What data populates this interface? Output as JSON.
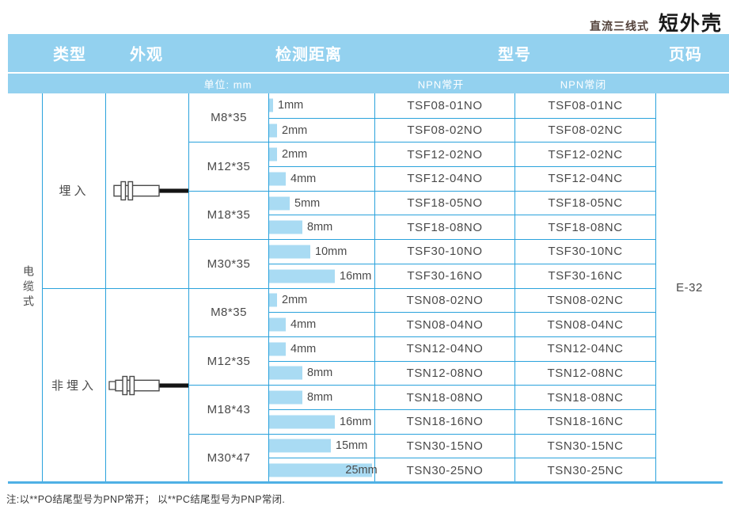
{
  "header": {
    "series_label": "直流三线式",
    "title": "短外壳"
  },
  "table": {
    "column_headers": {
      "type": "类型",
      "appearance": "外观",
      "distance": "检测距离",
      "model": "型号",
      "page": "页码"
    },
    "subheaders": {
      "unit": "单位: mm",
      "npn_open": "NPN常开",
      "npn_closed": "NPN常闭"
    },
    "cable_label": "电缆式",
    "page_code": "E-32",
    "sections": [
      {
        "type_label": "埋入",
        "appearance_icon": "flush-sensor-cable-icon",
        "groups": [
          {
            "size": "M8*35",
            "rows": [
              {
                "distance_mm": 1,
                "distance_label": "1mm",
                "npn_no": "TSF08-01NO",
                "npn_nc": "TSF08-01NC"
              },
              {
                "distance_mm": 2,
                "distance_label": "2mm",
                "npn_no": "TSF08-02NO",
                "npn_nc": "TSF08-02NC"
              }
            ]
          },
          {
            "size": "M12*35",
            "rows": [
              {
                "distance_mm": 2,
                "distance_label": "2mm",
                "npn_no": "TSF12-02NO",
                "npn_nc": "TSF12-02NC"
              },
              {
                "distance_mm": 4,
                "distance_label": "4mm",
                "npn_no": "TSF12-04NO",
                "npn_nc": "TSF12-04NC"
              }
            ]
          },
          {
            "size": "M18*35",
            "rows": [
              {
                "distance_mm": 5,
                "distance_label": "5mm",
                "npn_no": "TSF18-05NO",
                "npn_nc": "TSF18-05NC"
              },
              {
                "distance_mm": 8,
                "distance_label": "8mm",
                "npn_no": "TSF18-08NO",
                "npn_nc": "TSF18-08NC"
              }
            ]
          },
          {
            "size": "M30*35",
            "rows": [
              {
                "distance_mm": 10,
                "distance_label": "10mm",
                "npn_no": "TSF30-10NO",
                "npn_nc": "TSF30-10NC"
              },
              {
                "distance_mm": 16,
                "distance_label": "16mm",
                "npn_no": "TSF30-16NO",
                "npn_nc": "TSF30-16NC"
              }
            ]
          }
        ]
      },
      {
        "type_label": "非埋入",
        "appearance_icon": "non-flush-sensor-cable-icon",
        "groups": [
          {
            "size": "M8*35",
            "rows": [
              {
                "distance_mm": 2,
                "distance_label": "2mm",
                "npn_no": "TSN08-02NO",
                "npn_nc": "TSN08-02NC"
              },
              {
                "distance_mm": 4,
                "distance_label": "4mm",
                "npn_no": "TSN08-04NO",
                "npn_nc": "TSN08-04NC"
              }
            ]
          },
          {
            "size": "M12*35",
            "rows": [
              {
                "distance_mm": 4,
                "distance_label": "4mm",
                "npn_no": "TSN12-04NO",
                "npn_nc": "TSN12-04NC"
              },
              {
                "distance_mm": 8,
                "distance_label": "8mm",
                "npn_no": "TSN12-08NO",
                "npn_nc": "TSN12-08NC"
              }
            ]
          },
          {
            "size": "M18*43",
            "rows": [
              {
                "distance_mm": 8,
                "distance_label": "8mm",
                "npn_no": "TSN18-08NO",
                "npn_nc": "TSN18-08NC"
              },
              {
                "distance_mm": 16,
                "distance_label": "16mm",
                "npn_no": "TSN18-16NO",
                "npn_nc": "TSN18-16NC"
              }
            ]
          },
          {
            "size": "M30*47",
            "rows": [
              {
                "distance_mm": 15,
                "distance_label": "15mm",
                "npn_no": "TSN30-15NO",
                "npn_nc": "TSN30-15NC"
              },
              {
                "distance_mm": 25,
                "distance_label": "25mm",
                "npn_no": "TSN30-25NO",
                "npn_nc": "TSN30-25NC"
              }
            ]
          }
        ]
      }
    ]
  },
  "footnote": "注:以**PO结尾型号为PNP常开； 以**PC结尾型号为PNP常闭.",
  "colors": {
    "band_blue": "#93D1EF",
    "grid_line_blue": "#2AA2DC",
    "bar_fill_blue": "#A9DBF3",
    "bottom_rule_blue": "#4FB0E5",
    "series_label_brown": "#52413A"
  }
}
